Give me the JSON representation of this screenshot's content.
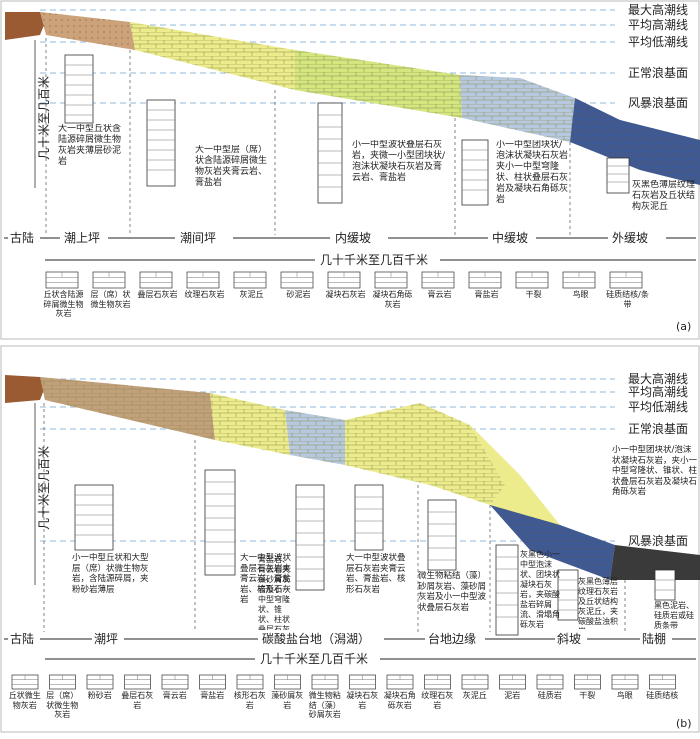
{
  "colors": {
    "land": "#9a5a32",
    "tidal_flat": "#cba27a",
    "yellow": "#ecec8c",
    "green": "#d3e680",
    "blue": "#b7c9de",
    "dark_blue": "#3d5a96",
    "dashed": "#8fb8dc"
  },
  "panel_a": {
    "label": "(a)",
    "lines": [
      "最大高潮线",
      "平均高潮线",
      "平均低潮线",
      "正常浪基面",
      "风暴浪基面"
    ],
    "height_label": "几十米至几百米",
    "distance_label": "几十千米至几百千米",
    "zones": [
      "古陆",
      "潮上坪",
      "潮间坪",
      "内缓坡",
      "中缓坡",
      "外缓坡"
    ],
    "descriptions": [
      "大一中型丘状含陆源碎屑微生物灰岩夹薄层砂泥岩",
      "大一中型层（席）状含陆源碎屑微生物灰岩夹膏云岩、膏盐岩",
      "小一中型波状叠层石灰岩，夹微一小型团块状/泡沫状凝块石灰岩及膏云岩、膏盐岩",
      "小一中型团块状/泡沫状凝块石灰岩夹小一中型穹隆状、柱状叠层石灰岩及凝块石角砾灰岩",
      "灰黑色薄层纹理石灰岩及丘状结构灰泥丘"
    ],
    "legend": [
      "丘状含陆源碎屑微生物灰岩",
      "层（席）状微生物灰岩",
      "叠层石灰岩",
      "纹理石灰岩",
      "灰泥丘",
      "砂泥岩",
      "凝块石灰岩",
      "凝块石角砾灰岩",
      "膏云岩",
      "膏盐岩",
      "干裂",
      "鸟眼",
      "硅质结核/条带"
    ]
  },
  "panel_b": {
    "label": "(b)",
    "lines": [
      "最大高潮线",
      "平均高潮线",
      "平均低潮线",
      "正常浪基面",
      "风暴浪基面"
    ],
    "height_label": "几十米至几百米",
    "distance_label": "几十千米至几百千米",
    "zones": [
      "古陆",
      "潮坪",
      "碳酸盐台地（潟湖）",
      "台地边缘",
      "斜坡",
      "陆棚"
    ],
    "descriptions": [
      "小一中型丘状和大型层（席）状微生物灰岩，含陆源碎屑，夹粉砂岩薄层",
      "大一中型波状叠层石灰岩夹膏云岩、膏盐岩、核形石灰岩",
      "膏盐岩、膏云岩夹藻砂屑灰岩及小一中型穹隆状、锥状、柱状叠层石灰岩",
      "大一中型波状叠层石灰岩夹膏云岩、膏盐岩、核形石灰岩",
      "微生物粘结（藻）砂屑灰岩、藻砂屑灰岩及小一中型波状叠层石灰岩",
      "小一中型团块状/泡沫状凝块石灰岩，夹小一中型穹隆状、锥状、柱状叠层石灰岩及凝块石角砾灰岩",
      "灰黑色小一中型泡沫状、团块状凝块石灰岩，夹碳酸盐岩碎屑流、滑塌角砾灰岩",
      "灰黑色薄层纹理石灰岩及丘状结构灰泥丘，夹碳酸盐浊积岩",
      "黑色泥岩、硅质岩或硅质条带"
    ],
    "legend": [
      "丘状微生物灰岩",
      "层（席）状微生物灰岩",
      "粉砂岩",
      "叠层石灰岩",
      "膏云岩",
      "膏盐岩",
      "核形石灰岩",
      "藻砂屑灰岩",
      "微生物粘结（藻）砂屑灰岩",
      "凝块石灰岩",
      "凝块石角砾灰岩",
      "纹理石灰岩",
      "灰泥丘",
      "泥岩",
      "硅质岩",
      "干裂",
      "鸟眼",
      "硅质结核"
    ]
  }
}
